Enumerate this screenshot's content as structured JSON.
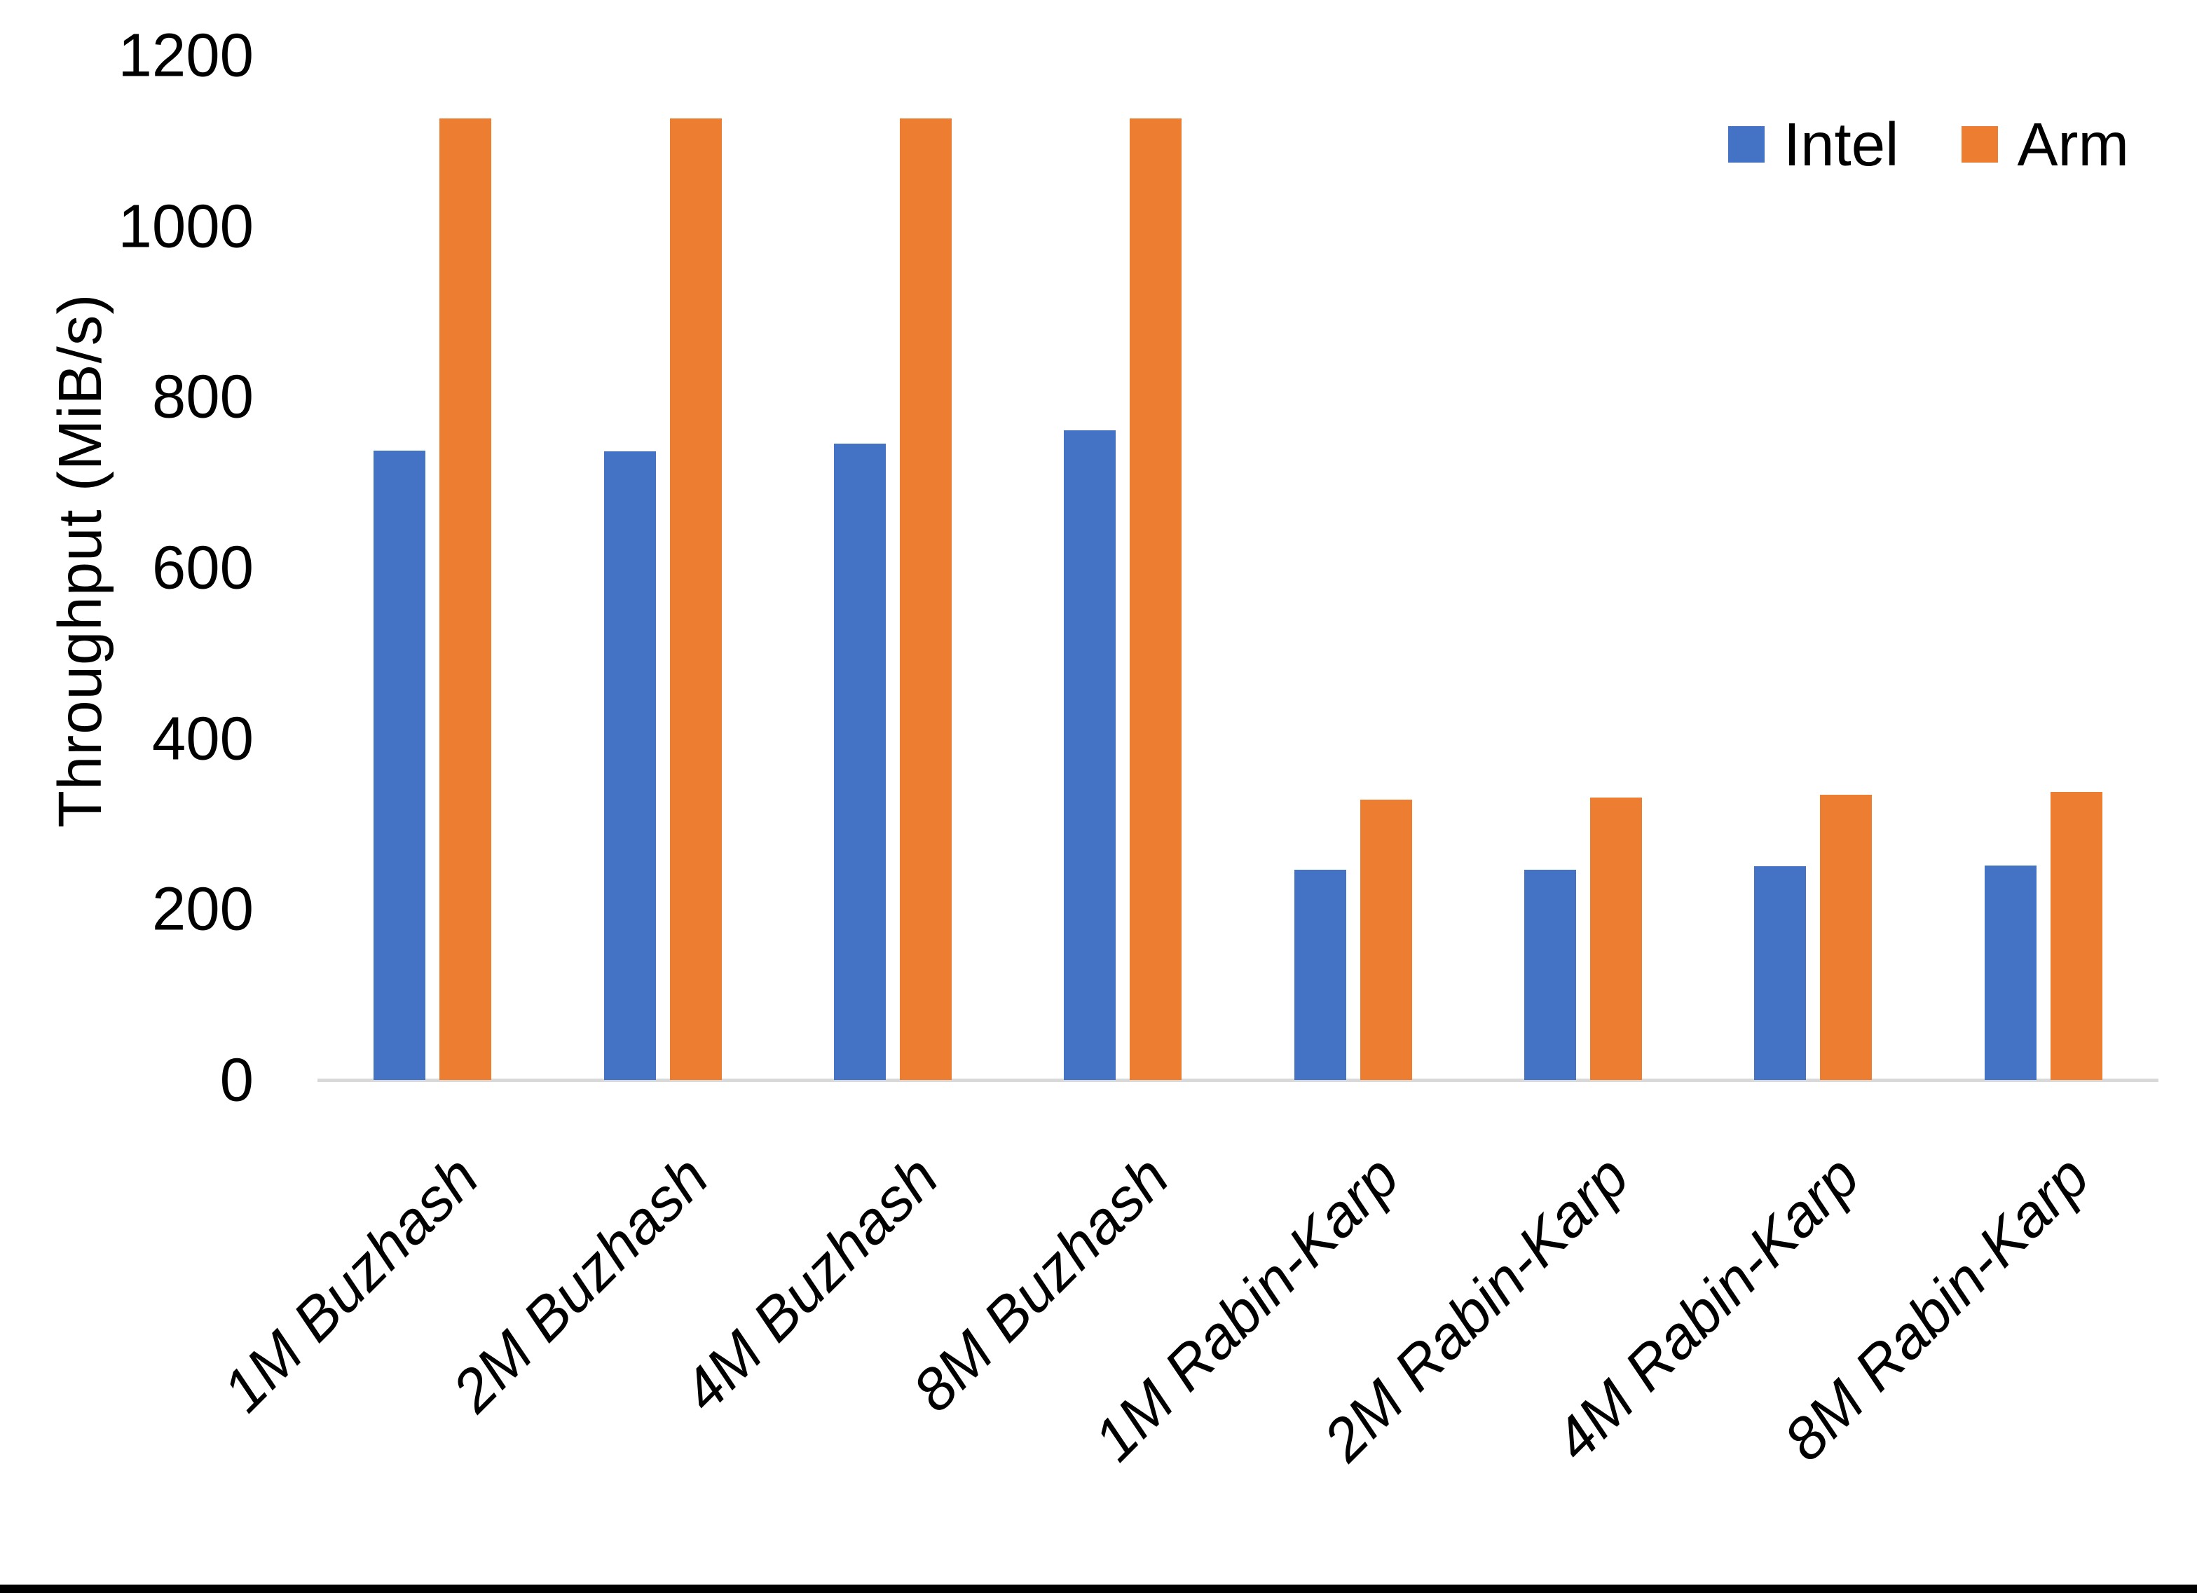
{
  "chart_data": {
    "type": "bar",
    "title": "",
    "xlabel": "",
    "ylabel": "Throughput (MiB/s)",
    "ylim": [
      0,
      1200
    ],
    "yticks": [
      0,
      200,
      400,
      600,
      800,
      1000,
      1200
    ],
    "grid": false,
    "legend_position": "top-right",
    "categories": [
      "1M Buzhash",
      "2M Buzhash",
      "4M Buzhash",
      "8M Buzhash",
      "1M Rabin-Karp",
      "2M Rabin-Karp",
      "4M Rabin-Karp",
      "8M Rabin-Karp"
    ],
    "series": [
      {
        "name": "Intel",
        "color": "#4472C4",
        "values": [
          737,
          736,
          745,
          761,
          246,
          246,
          250,
          251
        ]
      },
      {
        "name": "Arm",
        "color": "#ED7D31",
        "values": [
          1126,
          1126,
          1126,
          1126,
          328,
          331,
          334,
          337
        ]
      }
    ],
    "axis_line_color": "#D9D9D9",
    "text_color": "#000000"
  }
}
